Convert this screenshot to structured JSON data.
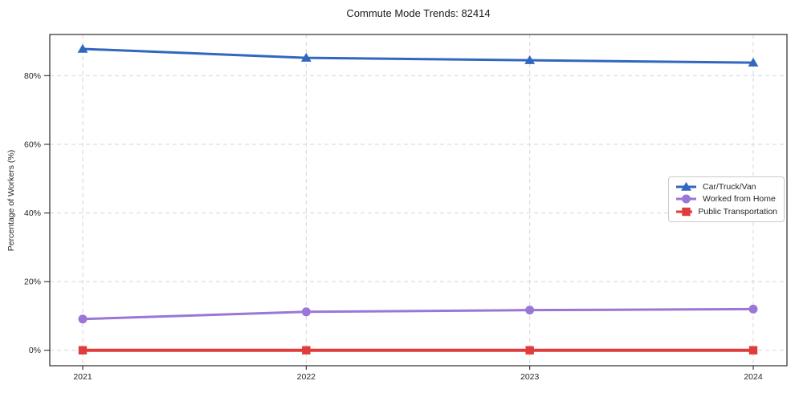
{
  "title": "Commute Mode Trends: 82414",
  "chart_data": {
    "type": "line",
    "title": "Commute Mode Trends: 82414",
    "xlabel": "",
    "ylabel": "Percentage of Workers (%)",
    "x": [
      "2021",
      "2022",
      "2023",
      "2024"
    ],
    "series": [
      {
        "name": "Car/Truck/Van",
        "values": [
          87.8,
          85.2,
          84.5,
          83.8
        ],
        "color": "#3267bf",
        "marker": "triangle",
        "linewidth": 3
      },
      {
        "name": "Worked from Home",
        "values": [
          9.1,
          11.2,
          11.7,
          12.0
        ],
        "color": "#9a77d6",
        "marker": "circle",
        "linewidth": 3
      },
      {
        "name": "Public Transportation",
        "values": [
          0.0,
          0.0,
          0.0,
          0.0
        ],
        "color": "#e03c3c",
        "marker": "square",
        "linewidth": 4
      }
    ],
    "yticks": [
      0,
      20,
      40,
      60,
      80
    ],
    "ytick_labels": [
      "0%",
      "20%",
      "40%",
      "60%",
      "80%"
    ],
    "ylim": [
      -4.5,
      92
    ],
    "grid": true,
    "grid_style": "dashed",
    "legend_position": "center right",
    "colors": {
      "grid": "#d5d5d5",
      "spine": "#2b2b2b",
      "text": "#262626",
      "background": "#ffffff"
    }
  }
}
